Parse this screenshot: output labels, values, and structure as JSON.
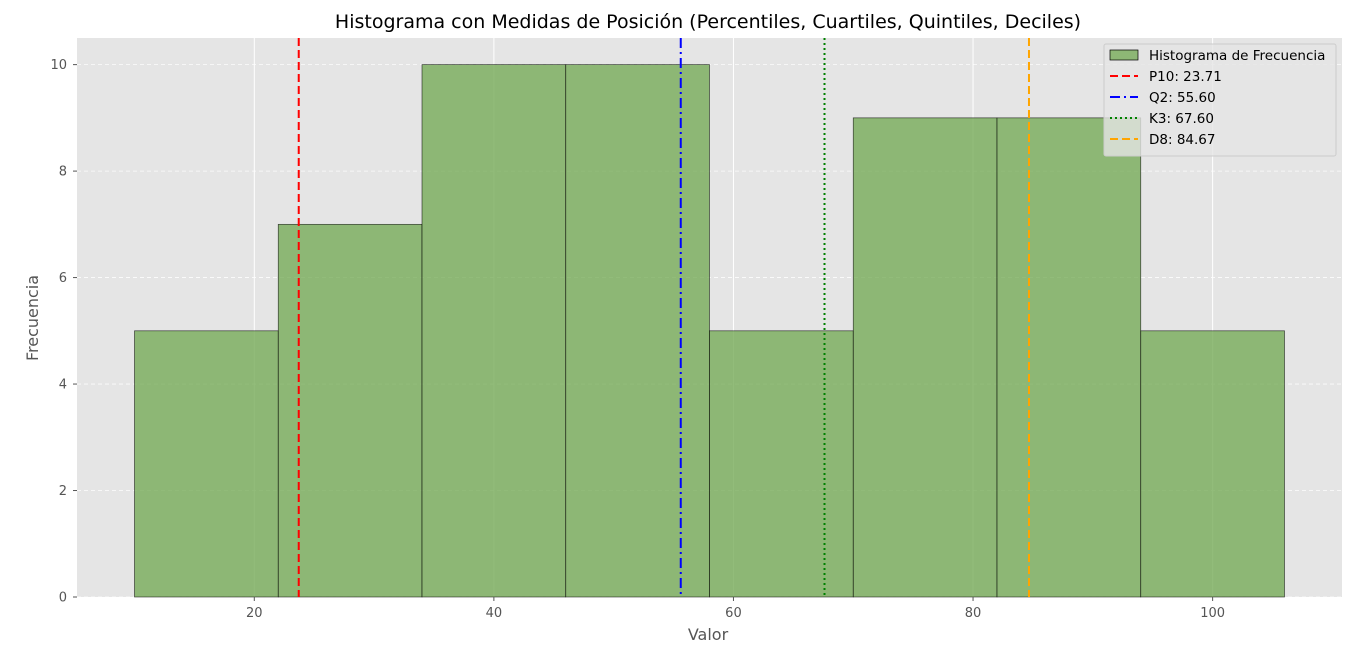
{
  "chart_data": {
    "type": "bar",
    "title": "Histograma con Medidas de Posición (Percentiles, Cuartiles, Quintiles, Deciles)",
    "xlabel": "Valor",
    "ylabel": "Frecuencia",
    "xlim": [
      5.2,
      110.8
    ],
    "ylim": [
      0,
      10.5
    ],
    "x_ticks": [
      20,
      40,
      60,
      80,
      100
    ],
    "y_ticks": [
      0,
      2,
      4,
      6,
      8,
      10
    ],
    "grid": true,
    "legend_position": "top-right",
    "bin_edges": [
      10,
      22,
      34,
      46,
      58,
      70,
      82,
      94,
      106
    ],
    "counts": [
      5,
      7,
      10,
      10,
      5,
      9,
      9,
      5
    ],
    "series": [
      {
        "name": "Histograma de Frecuencia",
        "color": "#77ab59",
        "edgecolor": "#000000"
      }
    ],
    "reference_lines": [
      {
        "label": "P10: 23.71",
        "value": 23.71,
        "color": "#ff0000",
        "style": "dashed"
      },
      {
        "label": "Q2: 55.60",
        "value": 55.6,
        "color": "#0000ff",
        "style": "dashdot"
      },
      {
        "label": "K3: 67.60",
        "value": 67.6,
        "color": "#008000",
        "style": "dotted"
      },
      {
        "label": "D8: 84.67",
        "value": 84.67,
        "color": "#ffa500",
        "style": "dashed"
      }
    ]
  }
}
